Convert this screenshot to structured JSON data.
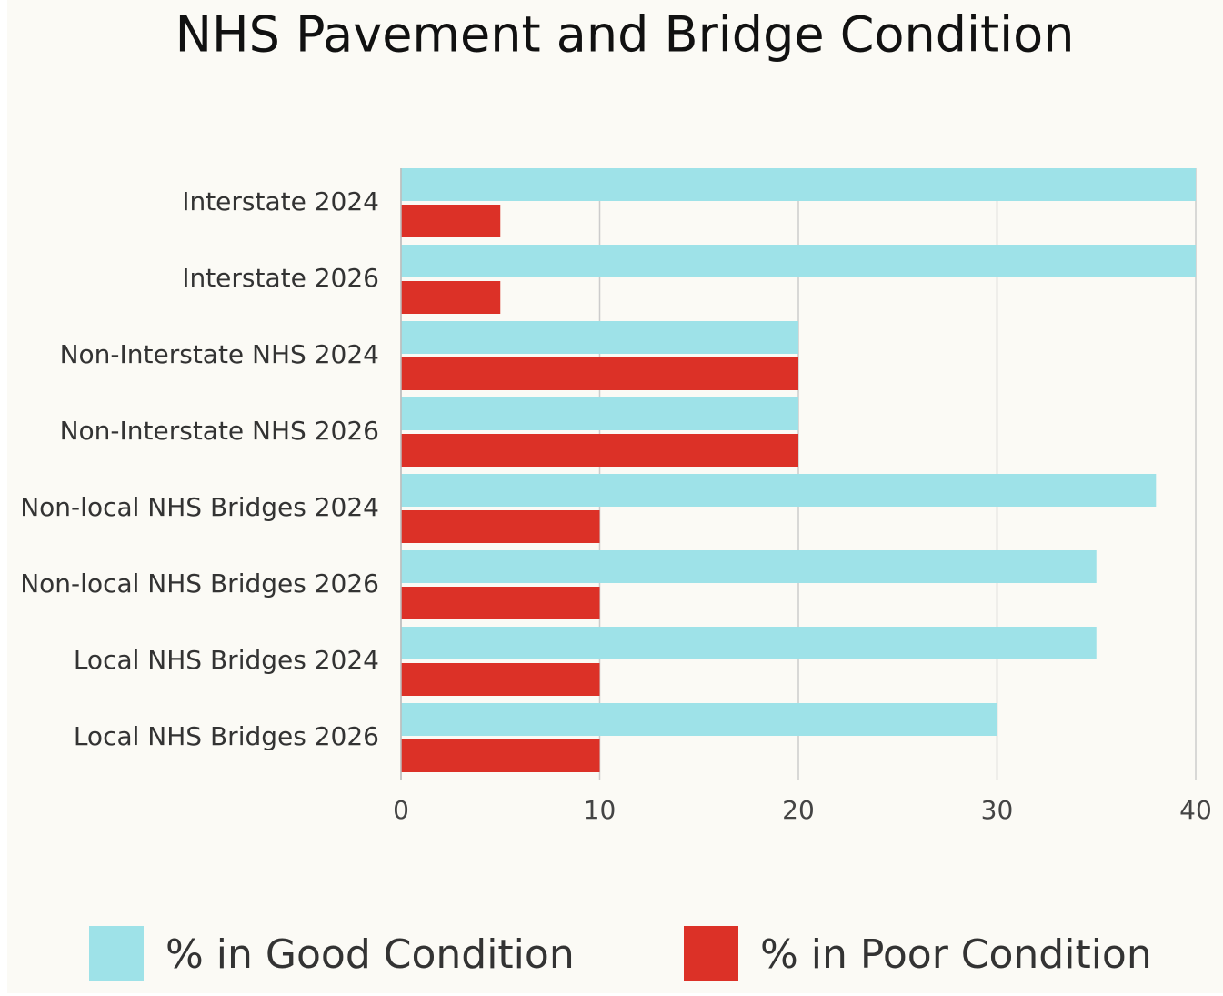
{
  "chart_data": {
    "type": "bar",
    "orientation": "horizontal",
    "title": "NHS Pavement and Bridge Condition",
    "categories": [
      "Interstate 2024",
      "Interstate 2026",
      "Non-Interstate NHS 2024",
      "Non-Interstate NHS 2026",
      "Non-local NHS Bridges 2024",
      "Non-local NHS Bridges 2026",
      "Local NHS Bridges 2024",
      "Local NHS Bridges 2026"
    ],
    "series": [
      {
        "name": "% in Good Condition",
        "color": "#9ee2e8",
        "values": [
          40,
          40,
          20,
          20,
          38,
          35,
          35,
          30
        ]
      },
      {
        "name": "% in Poor Condition",
        "color": "#dc3127",
        "values": [
          5,
          5,
          20,
          20,
          10,
          10,
          10,
          10
        ]
      }
    ],
    "xlim": [
      0,
      40
    ],
    "xticks": [
      0,
      10,
      20,
      30,
      40
    ],
    "grid": true
  }
}
